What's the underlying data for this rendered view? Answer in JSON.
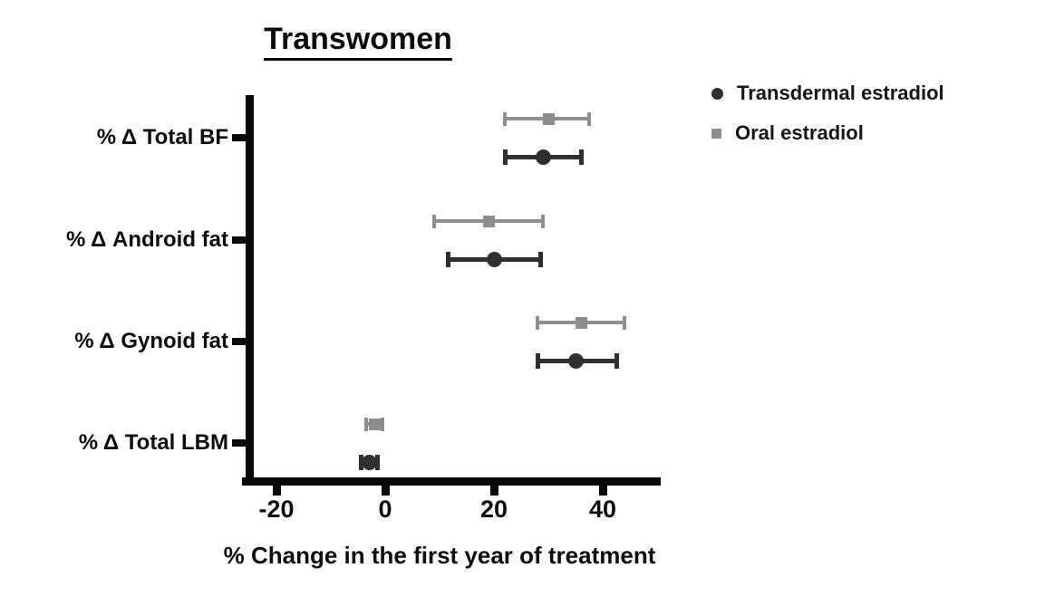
{
  "chart_data": {
    "type": "scatter",
    "subtype": "horizontal-dot-plot-with-error-bars",
    "title": "Transwomen",
    "xlabel": "% Change in the first year of treatment",
    "ylabel": "",
    "xlim": [
      -26,
      50
    ],
    "x_ticks": [
      -20,
      0,
      20,
      40
    ],
    "x_tick_labels": [
      "-20",
      "0",
      "20",
      "40"
    ],
    "grid": false,
    "legend_position": "top-right",
    "categories": [
      "% Δ Total BF",
      "% Δ Android fat",
      "% Δ Gynoid fat",
      "% Δ Total LBM"
    ],
    "series": [
      {
        "name": "Transdermal estradiol",
        "marker": "circle",
        "color": "#2f2f2f",
        "values": [
          29,
          20,
          35,
          -3
        ],
        "ci_lower": [
          22,
          11.5,
          28,
          -4.5
        ],
        "ci_upper": [
          36,
          28.5,
          42.5,
          -1.5
        ]
      },
      {
        "name": "Oral estradiol",
        "marker": "square",
        "color": "#8e8e8e",
        "values": [
          30,
          19,
          36,
          -2
        ],
        "ci_lower": [
          22,
          9,
          28,
          -3.5
        ],
        "ci_upper": [
          37.5,
          29,
          44,
          -0.5
        ]
      }
    ]
  },
  "colors": {
    "axis": "#0a0a0a",
    "text": "#0d0d0d",
    "transdermal": "#2f2f2f",
    "oral": "#8e8e8e"
  }
}
